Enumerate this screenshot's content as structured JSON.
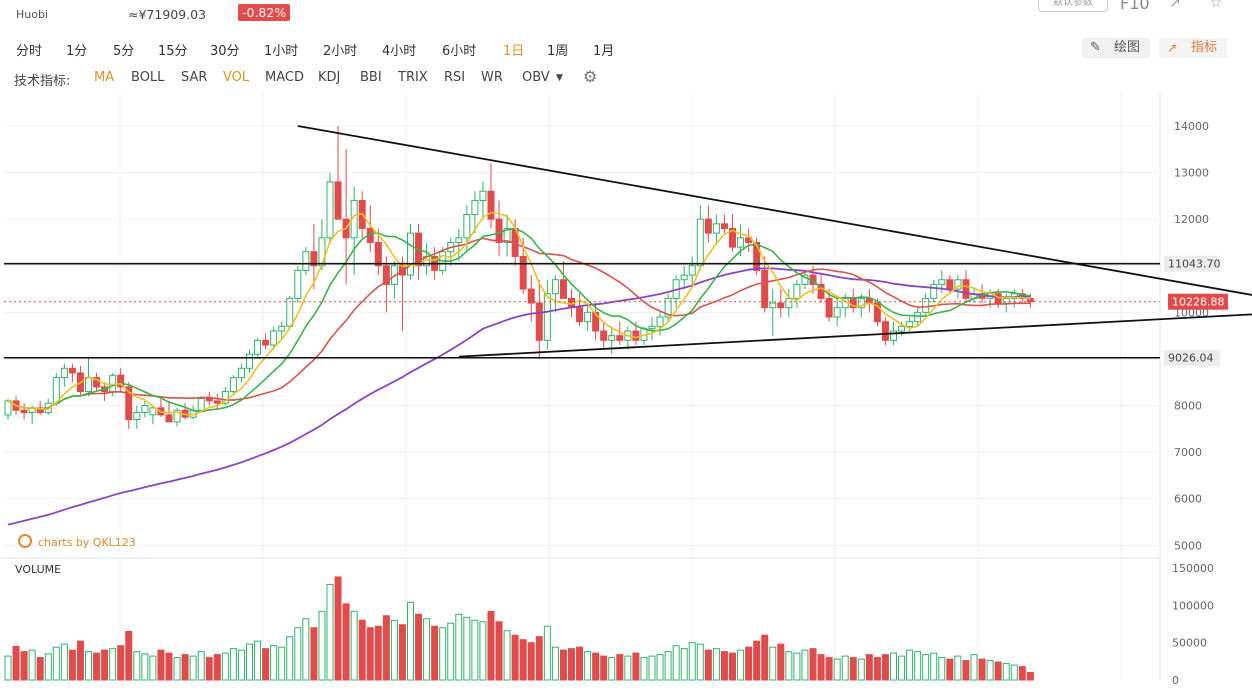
{
  "header": {
    "exchange": "Huobi",
    "cny_price": "≈¥71909.03",
    "change": "-0.82%",
    "preset_button": "默认参数",
    "f10": "F10"
  },
  "timeframes": [
    "分时",
    "1分",
    "5分",
    "15分",
    "30分",
    "1小时",
    "2小时",
    "4小时",
    "6小时",
    "1日",
    "1周",
    "1月"
  ],
  "active_timeframe": "1日",
  "toolbar": {
    "draw": "绘图",
    "indicators": "指标"
  },
  "indicator_bar": {
    "label": "技术指标:",
    "items": [
      "MA",
      "BOLL",
      "SAR",
      "VOL",
      "MACD",
      "KDJ",
      "BBI",
      "TRIX",
      "RSI",
      "WR",
      "OBV"
    ],
    "active": [
      "MA",
      "VOL"
    ]
  },
  "branding": "charts by QKL123",
  "colors": {
    "up": "#2fb56a",
    "down": "#e24b4b",
    "ma5": "#f0c020",
    "ma10": "#3ab54a",
    "ma20": "#d9534f",
    "ma60": "#8a44c8"
  },
  "chart_data": {
    "type": "candlestick",
    "price_axis": {
      "ticks": [
        5000,
        6000,
        7000,
        8000,
        9000,
        10000,
        11000,
        12000,
        13000,
        14000
      ],
      "ylim": [
        4900,
        14300
      ]
    },
    "price_tags": [
      {
        "label": "11043.70",
        "value": 11043.7,
        "kind": "resistance"
      },
      {
        "label": "10228.88",
        "value": 10228.88,
        "kind": "last"
      },
      {
        "label": "9026.04",
        "value": 9026.04,
        "kind": "support"
      }
    ],
    "trendlines": [
      {
        "from": [
          36,
          14000
        ],
        "to": [
          170,
          9900
        ]
      },
      {
        "from": [
          56,
          9050
        ],
        "to": [
          170,
          10100
        ]
      }
    ],
    "volume_axis": {
      "title": "VOLUME",
      "ticks": [
        0,
        50000,
        100000,
        150000
      ],
      "ylim": [
        0,
        150000
      ]
    },
    "series_ohlc": [
      [
        0,
        7800,
        8150,
        7700,
        8100
      ],
      [
        1,
        8100,
        8200,
        7800,
        7900
      ],
      [
        2,
        7900,
        8050,
        7700,
        7850
      ],
      [
        3,
        7850,
        8000,
        7600,
        7950
      ],
      [
        4,
        7950,
        8100,
        7800,
        7850
      ],
      [
        5,
        7850,
        8150,
        7800,
        8050
      ],
      [
        6,
        8050,
        8700,
        8000,
        8600
      ],
      [
        7,
        8600,
        8900,
        8400,
        8800
      ],
      [
        8,
        8800,
        8900,
        8500,
        8700
      ],
      [
        9,
        8700,
        8850,
        8200,
        8300
      ],
      [
        10,
        8300,
        9050,
        8200,
        8600
      ],
      [
        11,
        8600,
        8700,
        8300,
        8400
      ],
      [
        12,
        8400,
        8500,
        8100,
        8300
      ],
      [
        13,
        8300,
        8700,
        8200,
        8650
      ],
      [
        14,
        8650,
        8800,
        8300,
        8400
      ],
      [
        15,
        8400,
        8500,
        7500,
        7700
      ],
      [
        16,
        7700,
        8000,
        7500,
        7850
      ],
      [
        17,
        7850,
        8100,
        7750,
        8000
      ],
      [
        18,
        7800,
        8000,
        7600,
        7950
      ],
      [
        19,
        7950,
        8150,
        7750,
        7800
      ],
      [
        20,
        7800,
        8100,
        7750,
        7650
      ],
      [
        21,
        7650,
        7950,
        7550,
        7900
      ],
      [
        22,
        7900,
        8050,
        7700,
        7750
      ],
      [
        23,
        7750,
        8000,
        7700,
        7900
      ],
      [
        24,
        7900,
        8200,
        7850,
        8150
      ],
      [
        25,
        8150,
        8300,
        8000,
        8100
      ],
      [
        26,
        8100,
        8250,
        7900,
        8050
      ],
      [
        27,
        8050,
        8400,
        8000,
        8300
      ],
      [
        28,
        8300,
        8650,
        8250,
        8600
      ],
      [
        29,
        8600,
        8900,
        8500,
        8800
      ],
      [
        30,
        8800,
        9200,
        8700,
        9100
      ],
      [
        31,
        9100,
        9450,
        9050,
        9400
      ],
      [
        32,
        9400,
        9550,
        9200,
        9300
      ],
      [
        33,
        9300,
        9700,
        9200,
        9600
      ],
      [
        34,
        9600,
        9800,
        9400,
        9700
      ],
      [
        35,
        9700,
        10350,
        9650,
        10300
      ],
      [
        36,
        10300,
        11000,
        10200,
        10900
      ],
      [
        37,
        10900,
        11400,
        10800,
        11300
      ],
      [
        38,
        11300,
        11900,
        10500,
        11000
      ],
      [
        39,
        11000,
        12000,
        10900,
        11600
      ],
      [
        40,
        11600,
        13000,
        11500,
        12800
      ],
      [
        41,
        12800,
        14000,
        12400,
        12000
      ],
      [
        42,
        12000,
        13500,
        10600,
        11600
      ],
      [
        43,
        11600,
        12700,
        10800,
        12400
      ],
      [
        44,
        12400,
        12600,
        11600,
        11800
      ],
      [
        45,
        11800,
        12300,
        11300,
        11500
      ],
      [
        46,
        11500,
        11800,
        10800,
        11000
      ],
      [
        47,
        11000,
        11200,
        10000,
        10600
      ],
      [
        48,
        10600,
        11100,
        10300,
        11000
      ],
      [
        49,
        11000,
        11200,
        9600,
        10800
      ],
      [
        50,
        10800,
        11900,
        10700,
        11700
      ],
      [
        51,
        11700,
        11900,
        10700,
        11000
      ],
      [
        52,
        11000,
        11500,
        10800,
        11200
      ],
      [
        53,
        11200,
        11400,
        10700,
        10900
      ],
      [
        54,
        10900,
        11400,
        10800,
        11300
      ],
      [
        55,
        11300,
        11600,
        11000,
        11500
      ],
      [
        56,
        11500,
        11800,
        11100,
        11600
      ],
      [
        57,
        11600,
        12300,
        11300,
        12100
      ],
      [
        58,
        12100,
        12600,
        11700,
        12400
      ],
      [
        59,
        12400,
        12800,
        12000,
        12600
      ],
      [
        60,
        12600,
        13200,
        11800,
        12000
      ],
      [
        61,
        12000,
        12400,
        11200,
        11500
      ],
      [
        62,
        11500,
        12100,
        11200,
        11800
      ],
      [
        63,
        11800,
        12000,
        11000,
        11200
      ],
      [
        64,
        11200,
        11600,
        10400,
        10500
      ],
      [
        65,
        10500,
        10800,
        9800,
        10200
      ],
      [
        66,
        10200,
        10700,
        9000,
        9400
      ],
      [
        67,
        9400,
        10700,
        9200,
        10400
      ],
      [
        68,
        10400,
        10800,
        10000,
        10700
      ],
      [
        69,
        10700,
        11100,
        10500,
        10300
      ],
      [
        70,
        10300,
        10500,
        9900,
        10100
      ],
      [
        71,
        10100,
        10400,
        9700,
        9800
      ],
      [
        72,
        9800,
        10200,
        9600,
        10000
      ],
      [
        73,
        10000,
        10200,
        9400,
        9600
      ],
      [
        74,
        9600,
        9800,
        9200,
        9400
      ],
      [
        75,
        9400,
        9700,
        9100,
        9500
      ],
      [
        76,
        9500,
        9800,
        9300,
        9400
      ],
      [
        77,
        9400,
        9700,
        9200,
        9600
      ],
      [
        78,
        9600,
        9800,
        9300,
        9400
      ],
      [
        79,
        9400,
        9700,
        9300,
        9650
      ],
      [
        80,
        9650,
        9900,
        9400,
        9700
      ],
      [
        81,
        9700,
        10000,
        9500,
        9900
      ],
      [
        82,
        9900,
        10400,
        9800,
        10300
      ],
      [
        83,
        10300,
        10800,
        10100,
        10700
      ],
      [
        84,
        10700,
        11000,
        10500,
        10800
      ],
      [
        85,
        10800,
        11200,
        10600,
        11000
      ],
      [
        86,
        11000,
        12300,
        10900,
        12000
      ],
      [
        87,
        12000,
        12300,
        11500,
        11700
      ],
      [
        88,
        11700,
        12100,
        11500,
        11900
      ],
      [
        89,
        11900,
        12100,
        11700,
        11800
      ],
      [
        90,
        11800,
        12100,
        11300,
        11400
      ],
      [
        91,
        11400,
        11900,
        11200,
        11600
      ],
      [
        92,
        11600,
        11800,
        11300,
        11500
      ],
      [
        93,
        11500,
        11600,
        10800,
        10900
      ],
      [
        94,
        10900,
        11200,
        10000,
        10100
      ],
      [
        95,
        10100,
        10500,
        9500,
        10200
      ],
      [
        96,
        10200,
        10500,
        9900,
        10100
      ],
      [
        97,
        10100,
        10500,
        9900,
        10300
      ],
      [
        98,
        10300,
        10700,
        10100,
        10600
      ],
      [
        99,
        10600,
        10900,
        10500,
        10800
      ],
      [
        100,
        10800,
        11000,
        10400,
        10600
      ],
      [
        101,
        10600,
        10800,
        10200,
        10300
      ],
      [
        102,
        10300,
        10500,
        9800,
        9900
      ],
      [
        103,
        9900,
        10300,
        9700,
        10100
      ],
      [
        104,
        10100,
        10400,
        9900,
        10300
      ],
      [
        105,
        10300,
        10500,
        10000,
        10100
      ],
      [
        106,
        10100,
        10400,
        9900,
        10300
      ],
      [
        107,
        10300,
        10500,
        10000,
        10200
      ],
      [
        108,
        10200,
        10300,
        9700,
        9800
      ],
      [
        109,
        9800,
        9900,
        9300,
        9400
      ],
      [
        110,
        9400,
        9800,
        9300,
        9600
      ],
      [
        111,
        9600,
        9800,
        9500,
        9700
      ],
      [
        112,
        9700,
        9900,
        9600,
        9800
      ],
      [
        113,
        9800,
        10100,
        9700,
        10000
      ],
      [
        114,
        10000,
        10400,
        9900,
        10300
      ],
      [
        115,
        10300,
        10700,
        10200,
        10600
      ],
      [
        116,
        10600,
        10900,
        10400,
        10700
      ],
      [
        117,
        10700,
        10800,
        10400,
        10500
      ],
      [
        118,
        10500,
        10800,
        10300,
        10700
      ],
      [
        119,
        10700,
        10900,
        10200,
        10300
      ],
      [
        120,
        10300,
        10500,
        10200,
        10400
      ],
      [
        121,
        10400,
        10600,
        10200,
        10300
      ],
      [
        122,
        10300,
        10500,
        10100,
        10400
      ],
      [
        123,
        10400,
        10500,
        10100,
        10200
      ],
      [
        124,
        10200,
        10400,
        10000,
        10300
      ],
      [
        125,
        10300,
        10500,
        10100,
        10400
      ],
      [
        126,
        10400,
        10500,
        10200,
        10300
      ],
      [
        127,
        10300,
        10400,
        10100,
        10228.88
      ]
    ],
    "volume": [
      32,
      45,
      38,
      40,
      30,
      35,
      44,
      48,
      40,
      52,
      38,
      36,
      40,
      42,
      46,
      65,
      38,
      35,
      32,
      40,
      36,
      30,
      34,
      32,
      38,
      30,
      34,
      36,
      42,
      40,
      48,
      52,
      42,
      46,
      44,
      58,
      70,
      82,
      70,
      92,
      128,
      138,
      102,
      92,
      80,
      70,
      72,
      86,
      80,
      74,
      104,
      88,
      82,
      72,
      70,
      76,
      88,
      84,
      80,
      78,
      92,
      78,
      66,
      60,
      54,
      50,
      58,
      72,
      44,
      40,
      42,
      44,
      38,
      36,
      32,
      30,
      34,
      32,
      36,
      30,
      32,
      34,
      38,
      46,
      42,
      50,
      48,
      40,
      42,
      38,
      36,
      40,
      44,
      52,
      60,
      44,
      48,
      38,
      36,
      40,
      42,
      34,
      30,
      28,
      32,
      30,
      28,
      34,
      30,
      34,
      36,
      32,
      40,
      38,
      34,
      36,
      30,
      28,
      32,
      26,
      34,
      28,
      26,
      24,
      22,
      20,
      18,
      10
    ]
  }
}
